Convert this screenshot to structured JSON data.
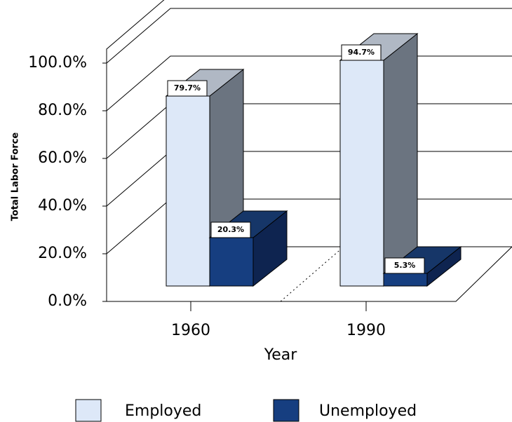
{
  "chart_data": {
    "type": "bar3d",
    "x_label": "Year",
    "y_label": "Total Labor Force",
    "categories": [
      "1960",
      "1990"
    ],
    "series": [
      {
        "name": "Employed",
        "color": "#dde8f8",
        "values": [
          79.7,
          94.7
        ],
        "value_labels": [
          "79.7%",
          "94.7%"
        ]
      },
      {
        "name": "Unemployed",
        "color": "#163e80",
        "values": [
          20.3,
          5.3
        ],
        "value_labels": [
          "20.3%",
          "5.3%"
        ]
      }
    ],
    "ylim": [
      0,
      100
    ],
    "yticks": [
      {
        "value": 0,
        "label": "0.0%"
      },
      {
        "value": 20,
        "label": "20.0%"
      },
      {
        "value": 40,
        "label": "40.0%"
      },
      {
        "value": 60,
        "label": "60.0%"
      },
      {
        "value": 80,
        "label": "80.0%"
      },
      {
        "value": 100,
        "label": "100.0%"
      }
    ],
    "grid": true
  }
}
